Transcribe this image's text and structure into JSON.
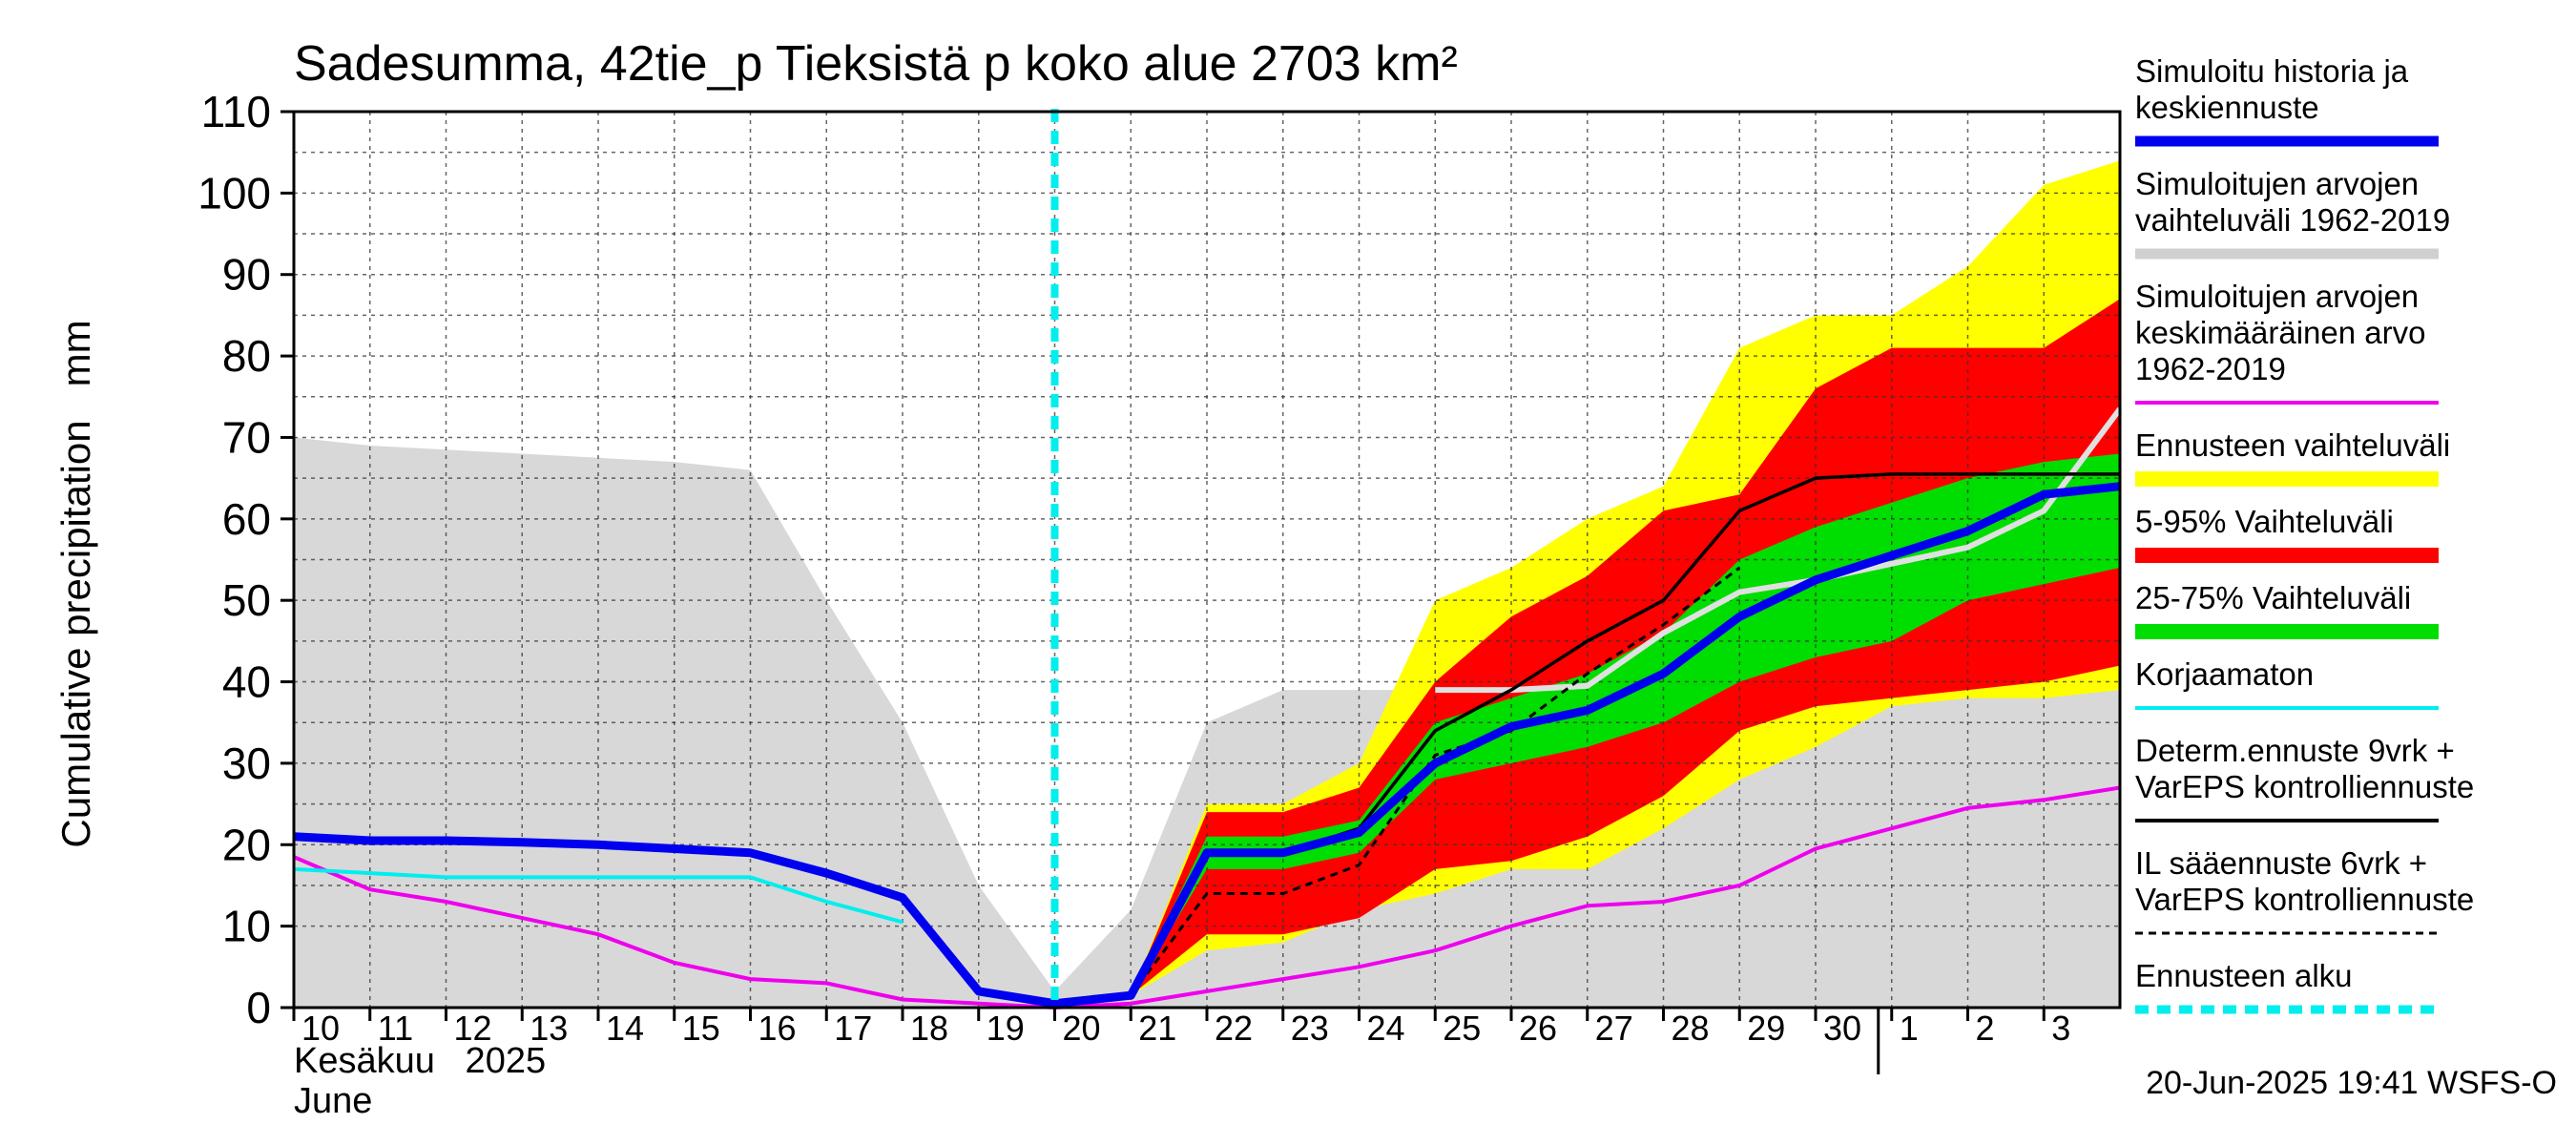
{
  "chart_data": {
    "type": "area",
    "title": "Sadesumma, 42tie_p Tieksistä p koko alue 2703 km²",
    "ylabel": "Cumulative precipitation   mm",
    "ylim": [
      0,
      110
    ],
    "yticks": [
      "0",
      "10",
      "20",
      "30",
      "40",
      "50",
      "60",
      "70",
      "80",
      "90",
      "100",
      "110"
    ],
    "x_tick_labels": [
      "10",
      "11",
      "12",
      "13",
      "14",
      "15",
      "16",
      "17",
      "18",
      "19",
      "20",
      "21",
      "22",
      "23",
      "24",
      "25",
      "26",
      "27",
      "28",
      "29",
      "30",
      "1",
      "2",
      "3"
    ],
    "month_fi": "Kesäkuu   2025",
    "month_en": "June",
    "footer": "20-Jun-2025 19:41 WSFS-O",
    "grid": true,
    "legend_position": "right",
    "forecast_start_day": 20,
    "series": {
      "hist_range": {
        "colors": "#d8d8d8",
        "upper": [
          [
            10,
            70
          ],
          [
            11,
            69
          ],
          [
            12,
            68.5
          ],
          [
            13,
            68
          ],
          [
            14,
            67.5
          ],
          [
            15,
            67
          ],
          [
            16,
            66
          ],
          [
            17,
            50
          ],
          [
            18,
            35
          ],
          [
            19,
            15
          ],
          [
            20,
            2
          ],
          [
            21,
            12
          ],
          [
            22,
            35
          ],
          [
            23,
            39
          ],
          [
            24,
            39
          ],
          [
            25,
            39
          ],
          [
            26,
            39
          ],
          [
            27,
            39
          ],
          [
            28,
            39
          ],
          [
            29,
            39
          ],
          [
            30,
            39
          ],
          [
            31,
            39
          ],
          [
            32,
            39
          ],
          [
            33,
            39
          ],
          [
            34,
            39.5
          ]
        ],
        "lower": [
          [
            10,
            0
          ],
          [
            34,
            0
          ]
        ]
      },
      "ens_range": {
        "upper": [
          [
            21,
            1.5
          ],
          [
            22,
            25
          ],
          [
            23,
            25
          ],
          [
            24,
            30
          ],
          [
            25,
            50
          ],
          [
            26,
            54
          ],
          [
            27,
            60
          ],
          [
            28,
            64
          ],
          [
            29,
            81
          ],
          [
            30,
            85
          ],
          [
            31,
            85
          ],
          [
            32,
            91
          ],
          [
            33,
            101
          ],
          [
            34,
            104
          ]
        ],
        "lower": [
          [
            21,
            1.5
          ],
          [
            22,
            7
          ],
          [
            23,
            8
          ],
          [
            24,
            12
          ],
          [
            25,
            14
          ],
          [
            26,
            17
          ],
          [
            27,
            17
          ],
          [
            28,
            22
          ],
          [
            29,
            28
          ],
          [
            30,
            32
          ],
          [
            31,
            37
          ],
          [
            32,
            38
          ],
          [
            33,
            38
          ],
          [
            34,
            39
          ]
        ]
      },
      "p5_95": {
        "upper": [
          [
            21,
            1.5
          ],
          [
            22,
            24
          ],
          [
            23,
            24
          ],
          [
            24,
            27
          ],
          [
            25,
            40
          ],
          [
            26,
            48
          ],
          [
            27,
            53
          ],
          [
            28,
            61
          ],
          [
            29,
            63
          ],
          [
            30,
            76
          ],
          [
            31,
            81
          ],
          [
            32,
            81
          ],
          [
            33,
            81
          ],
          [
            34,
            87
          ]
        ],
        "lower": [
          [
            21,
            1.5
          ],
          [
            22,
            9
          ],
          [
            23,
            9
          ],
          [
            24,
            11
          ],
          [
            25,
            17
          ],
          [
            26,
            18
          ],
          [
            27,
            21
          ],
          [
            28,
            26
          ],
          [
            29,
            34
          ],
          [
            30,
            37
          ],
          [
            31,
            38
          ],
          [
            32,
            39
          ],
          [
            33,
            40
          ],
          [
            34,
            42
          ]
        ]
      },
      "p25_75": {
        "upper": [
          [
            21,
            1.5
          ],
          [
            22,
            21
          ],
          [
            23,
            21
          ],
          [
            24,
            23
          ],
          [
            25,
            35
          ],
          [
            26,
            38
          ],
          [
            27,
            41
          ],
          [
            28,
            46
          ],
          [
            29,
            55
          ],
          [
            30,
            59
          ],
          [
            31,
            62
          ],
          [
            32,
            65
          ],
          [
            33,
            67
          ],
          [
            34,
            68
          ]
        ],
        "lower": [
          [
            21,
            1.5
          ],
          [
            22,
            17
          ],
          [
            23,
            17
          ],
          [
            24,
            19
          ],
          [
            25,
            28
          ],
          [
            26,
            30
          ],
          [
            27,
            32
          ],
          [
            28,
            35
          ],
          [
            29,
            40
          ],
          [
            30,
            43
          ],
          [
            31,
            45
          ],
          [
            32,
            50
          ],
          [
            33,
            52
          ],
          [
            34,
            54
          ]
        ]
      },
      "sim_mean": [
        [
          10,
          18.5
        ],
        [
          11,
          14.5
        ],
        [
          12,
          13
        ],
        [
          13,
          11
        ],
        [
          14,
          9
        ],
        [
          15,
          5.5
        ],
        [
          16,
          3.5
        ],
        [
          17,
          3
        ],
        [
          18,
          1
        ],
        [
          19,
          0.5
        ],
        [
          20,
          0
        ],
        [
          21,
          0.5
        ],
        [
          22,
          2
        ],
        [
          23,
          3.5
        ],
        [
          24,
          5
        ],
        [
          25,
          7
        ],
        [
          26,
          10
        ],
        [
          27,
          12.5
        ],
        [
          28,
          13
        ],
        [
          29,
          15
        ],
        [
          30,
          19.5
        ],
        [
          31,
          22
        ],
        [
          32,
          24.5
        ],
        [
          33,
          25.5
        ],
        [
          34,
          27
        ]
      ],
      "uncorrected": [
        [
          10,
          17
        ],
        [
          11,
          16.5
        ],
        [
          12,
          16
        ],
        [
          13,
          16
        ],
        [
          14,
          16
        ],
        [
          15,
          16
        ],
        [
          16,
          16
        ],
        [
          17,
          13
        ],
        [
          18,
          10.5
        ]
      ],
      "forecast_line_grey": [
        [
          25,
          39
        ],
        [
          26,
          39
        ],
        [
          27,
          39.5
        ],
        [
          28,
          46
        ],
        [
          29,
          51
        ],
        [
          30,
          52.5
        ],
        [
          31,
          54.5
        ],
        [
          32,
          56.5
        ],
        [
          33,
          61
        ],
        [
          34,
          73.5
        ]
      ],
      "determ": [
        [
          21,
          1.5
        ],
        [
          22,
          19
        ],
        [
          23,
          19
        ],
        [
          24,
          22
        ],
        [
          25,
          34
        ],
        [
          26,
          39
        ],
        [
          27,
          45
        ],
        [
          28,
          50
        ],
        [
          29,
          61
        ],
        [
          30,
          65
        ],
        [
          31,
          65.5
        ],
        [
          32,
          65.5
        ],
        [
          33,
          65.5
        ],
        [
          34,
          65.5
        ]
      ],
      "il_forecast": [
        [
          21,
          1.5
        ],
        [
          22,
          14
        ],
        [
          23,
          14
        ],
        [
          24,
          17.5
        ],
        [
          25,
          31
        ],
        [
          26,
          34
        ],
        [
          27,
          41
        ],
        [
          28,
          47
        ],
        [
          29,
          54
        ]
      ],
      "history_mean": [
        [
          10,
          21
        ],
        [
          11,
          20.5
        ],
        [
          12,
          20.5
        ],
        [
          13,
          20.3
        ],
        [
          14,
          20
        ],
        [
          15,
          19.5
        ],
        [
          16,
          19
        ],
        [
          17,
          16.5
        ],
        [
          18,
          13.5
        ],
        [
          19,
          2
        ],
        [
          20,
          0.5
        ],
        [
          21,
          1.5
        ],
        [
          22,
          19
        ],
        [
          23,
          19
        ],
        [
          24,
          21.5
        ],
        [
          25,
          30
        ],
        [
          26,
          34.5
        ],
        [
          27,
          36.5
        ],
        [
          28,
          41
        ],
        [
          29,
          48
        ],
        [
          30,
          52.5
        ],
        [
          31,
          55.5
        ],
        [
          32,
          58.5
        ],
        [
          33,
          63
        ],
        [
          34,
          64
        ]
      ]
    },
    "legend": [
      {
        "label": "Simuloitu historia ja\nkeskiennuste",
        "color": "#0000ee",
        "style": "thick-line"
      },
      {
        "label": "Simuloitujen arvojen\nvaihteluväli 1962-2019",
        "color": "#d0d0d0",
        "style": "thick-line"
      },
      {
        "label": "Simuloitujen arvojen\nkeskimääräinen arvo\n   1962-2019",
        "color": "#ee00ee",
        "style": "line"
      },
      {
        "label": "Ennusteen vaihteluväli",
        "color": "#ffff00",
        "style": "band"
      },
      {
        "label": "5-95% Vaihteluväli",
        "color": "#ff0000",
        "style": "band"
      },
      {
        "label": "25-75% Vaihteluväli",
        "color": "#00dd00",
        "style": "band"
      },
      {
        "label": "Korjaamaton",
        "color": "#00eeee",
        "style": "line"
      },
      {
        "label": "Determ.ennuste 9vrk  +\nVarEPS kontrolliennuste",
        "color": "#000000",
        "style": "line"
      },
      {
        "label": "IL sääennuste 6vrk  +\n  VarEPS kontrolliennuste",
        "color": "#000000",
        "style": "dashed"
      },
      {
        "label": "Ennusteen alku",
        "color": "#00eeee",
        "style": "thick-dashed"
      }
    ]
  }
}
